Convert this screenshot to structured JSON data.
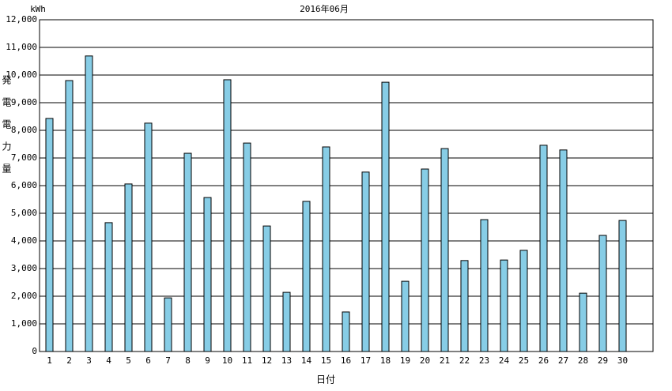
{
  "chart_data": {
    "type": "bar",
    "title": "2016年06月",
    "unit": "kWh",
    "y_label": "発電電力量",
    "x_label": "日付",
    "categories": [
      "1",
      "2",
      "3",
      "4",
      "5",
      "6",
      "7",
      "8",
      "9",
      "10",
      "11",
      "12",
      "13",
      "14",
      "15",
      "16",
      "17",
      "18",
      "19",
      "20",
      "21",
      "22",
      "23",
      "24",
      "25",
      "26",
      "27",
      "28",
      "29",
      "30"
    ],
    "values": [
      8430,
      9800,
      10690,
      4660,
      6060,
      8260,
      1940,
      7170,
      5570,
      9830,
      7540,
      4540,
      2140,
      5430,
      7400,
      1430,
      6490,
      9740,
      2540,
      6600,
      7340,
      3290,
      4770,
      3310,
      3660,
      7460,
      7290,
      2110,
      4200,
      4740
    ],
    "color": "#87cde6",
    "ylim": [
      0,
      12000
    ],
    "yticks": [
      0,
      {
        "value": 1000,
        "label": "1,000"
      },
      {
        "value": 2000,
        "label": "2,000"
      },
      {
        "value": 3000,
        "label": "3,000"
      },
      {
        "value": 4000,
        "label": "4,000"
      },
      {
        "value": 5000,
        "label": "5,000"
      },
      {
        "value": 6000,
        "label": "6,000"
      },
      {
        "value": 7000,
        "label": "7,000"
      },
      {
        "value": 8000,
        "label": "8,000"
      },
      {
        "value": 9000,
        "label": "9,000"
      },
      {
        "value": 10000,
        "label": "10,000"
      },
      {
        "value": 11000,
        "label": "11,000"
      },
      {
        "value": 12000,
        "label": "12,000"
      }
    ],
    "grid": true
  }
}
